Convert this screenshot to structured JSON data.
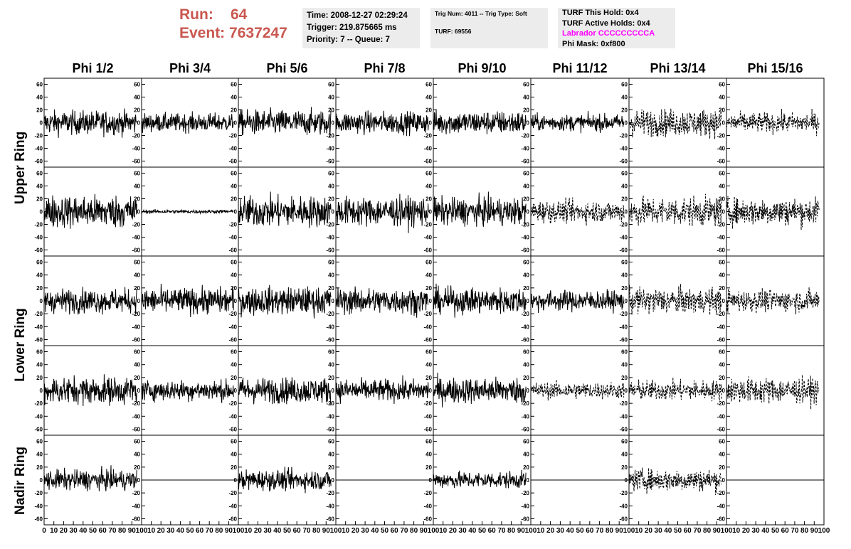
{
  "header": {
    "run_label": "Run:",
    "run_value": "64",
    "event_label": "Event:",
    "event_value": "7637247",
    "time": "Time: 2008-12-27 02:29:24",
    "trigger": "Trigger: 219.875665 ms",
    "priority": "Priority: 7 -- Queue: 7",
    "trig_num": "Trig Num: 4011 -- Trig Type: Soft",
    "turf": "TURF: 69556",
    "turf_this_hold": "TURF This Hold: 0x4",
    "turf_active_holds": "TURF Active Holds: 0x4",
    "labrador": "Labrador CCCCCCCCCA",
    "phi_mask": "Phi Mask: 0xf800"
  },
  "colors": {
    "header_red": "#c9574f",
    "labrador": "#ff00ff",
    "panel_bg": "#ececec"
  },
  "chart_data": {
    "type": "line",
    "columns": [
      "Phi 1/2",
      "Phi 3/4",
      "Phi 5/6",
      "Phi 7/8",
      "Phi 9/10",
      "Phi 11/12",
      "Phi 13/14",
      "Phi 15/16"
    ],
    "rows": [
      "Upper Ring",
      "Upper Ring",
      "Lower Ring",
      "Lower Ring",
      "Nadir Ring"
    ],
    "row_labels": [
      "Upper Ring",
      "Lower Ring",
      "Nadir Ring"
    ],
    "ylim": [
      -65,
      65
    ],
    "yticks": [
      "-60",
      "-40",
      "-20",
      "0",
      "20",
      "40",
      "60"
    ],
    "xlim": [
      0,
      100
    ],
    "xticks": [
      "0",
      "10",
      "20",
      "30",
      "40",
      "50",
      "60",
      "70",
      "80",
      "90",
      "100"
    ],
    "trace_x_end": 95,
    "panels": [
      [
        {
          "amp": 13,
          "style": "solid"
        },
        {
          "amp": 10,
          "style": "solid"
        },
        {
          "amp": 14,
          "style": "solid"
        },
        {
          "amp": 12,
          "style": "solid"
        },
        {
          "amp": 13,
          "style": "solid"
        },
        {
          "amp": 9,
          "style": "solid"
        },
        {
          "amp": 15,
          "style": "dashed"
        },
        {
          "amp": 11,
          "style": "dashed"
        }
      ],
      [
        {
          "amp": 18,
          "style": "solid"
        },
        {
          "amp": 2,
          "style": "solid"
        },
        {
          "amp": 17,
          "style": "solid"
        },
        {
          "amp": 16,
          "style": "solid"
        },
        {
          "amp": 15,
          "style": "solid"
        },
        {
          "amp": 12,
          "style": "dashed"
        },
        {
          "amp": 16,
          "style": "dashed"
        },
        {
          "amp": 15,
          "style": "dashed"
        }
      ],
      [
        {
          "amp": 13,
          "style": "solid"
        },
        {
          "amp": 14,
          "style": "solid"
        },
        {
          "amp": 15,
          "style": "solid"
        },
        {
          "amp": 14,
          "style": "solid"
        },
        {
          "amp": 14,
          "style": "solid"
        },
        {
          "amp": 11,
          "style": "solid"
        },
        {
          "amp": 14,
          "style": "dashed"
        },
        {
          "amp": 12,
          "style": "dashed"
        }
      ],
      [
        {
          "amp": 15,
          "style": "solid"
        },
        {
          "amp": 11,
          "style": "solid"
        },
        {
          "amp": 14,
          "style": "solid"
        },
        {
          "amp": 12,
          "style": "solid"
        },
        {
          "amp": 14,
          "style": "solid"
        },
        {
          "amp": 9,
          "style": "dashed"
        },
        {
          "amp": 11,
          "style": "dashed"
        },
        {
          "amp": 14,
          "style": "dashed"
        }
      ],
      [
        {
          "amp": 11,
          "style": "solid"
        },
        {
          "amp": 0,
          "style": "flat"
        },
        {
          "amp": 11,
          "style": "solid"
        },
        {
          "amp": 0,
          "style": "flat"
        },
        {
          "amp": 9,
          "style": "solid"
        },
        {
          "amp": 0,
          "style": "flat"
        },
        {
          "amp": 12,
          "style": "dashed"
        },
        {
          "amp": 0,
          "style": "flat"
        }
      ]
    ]
  }
}
